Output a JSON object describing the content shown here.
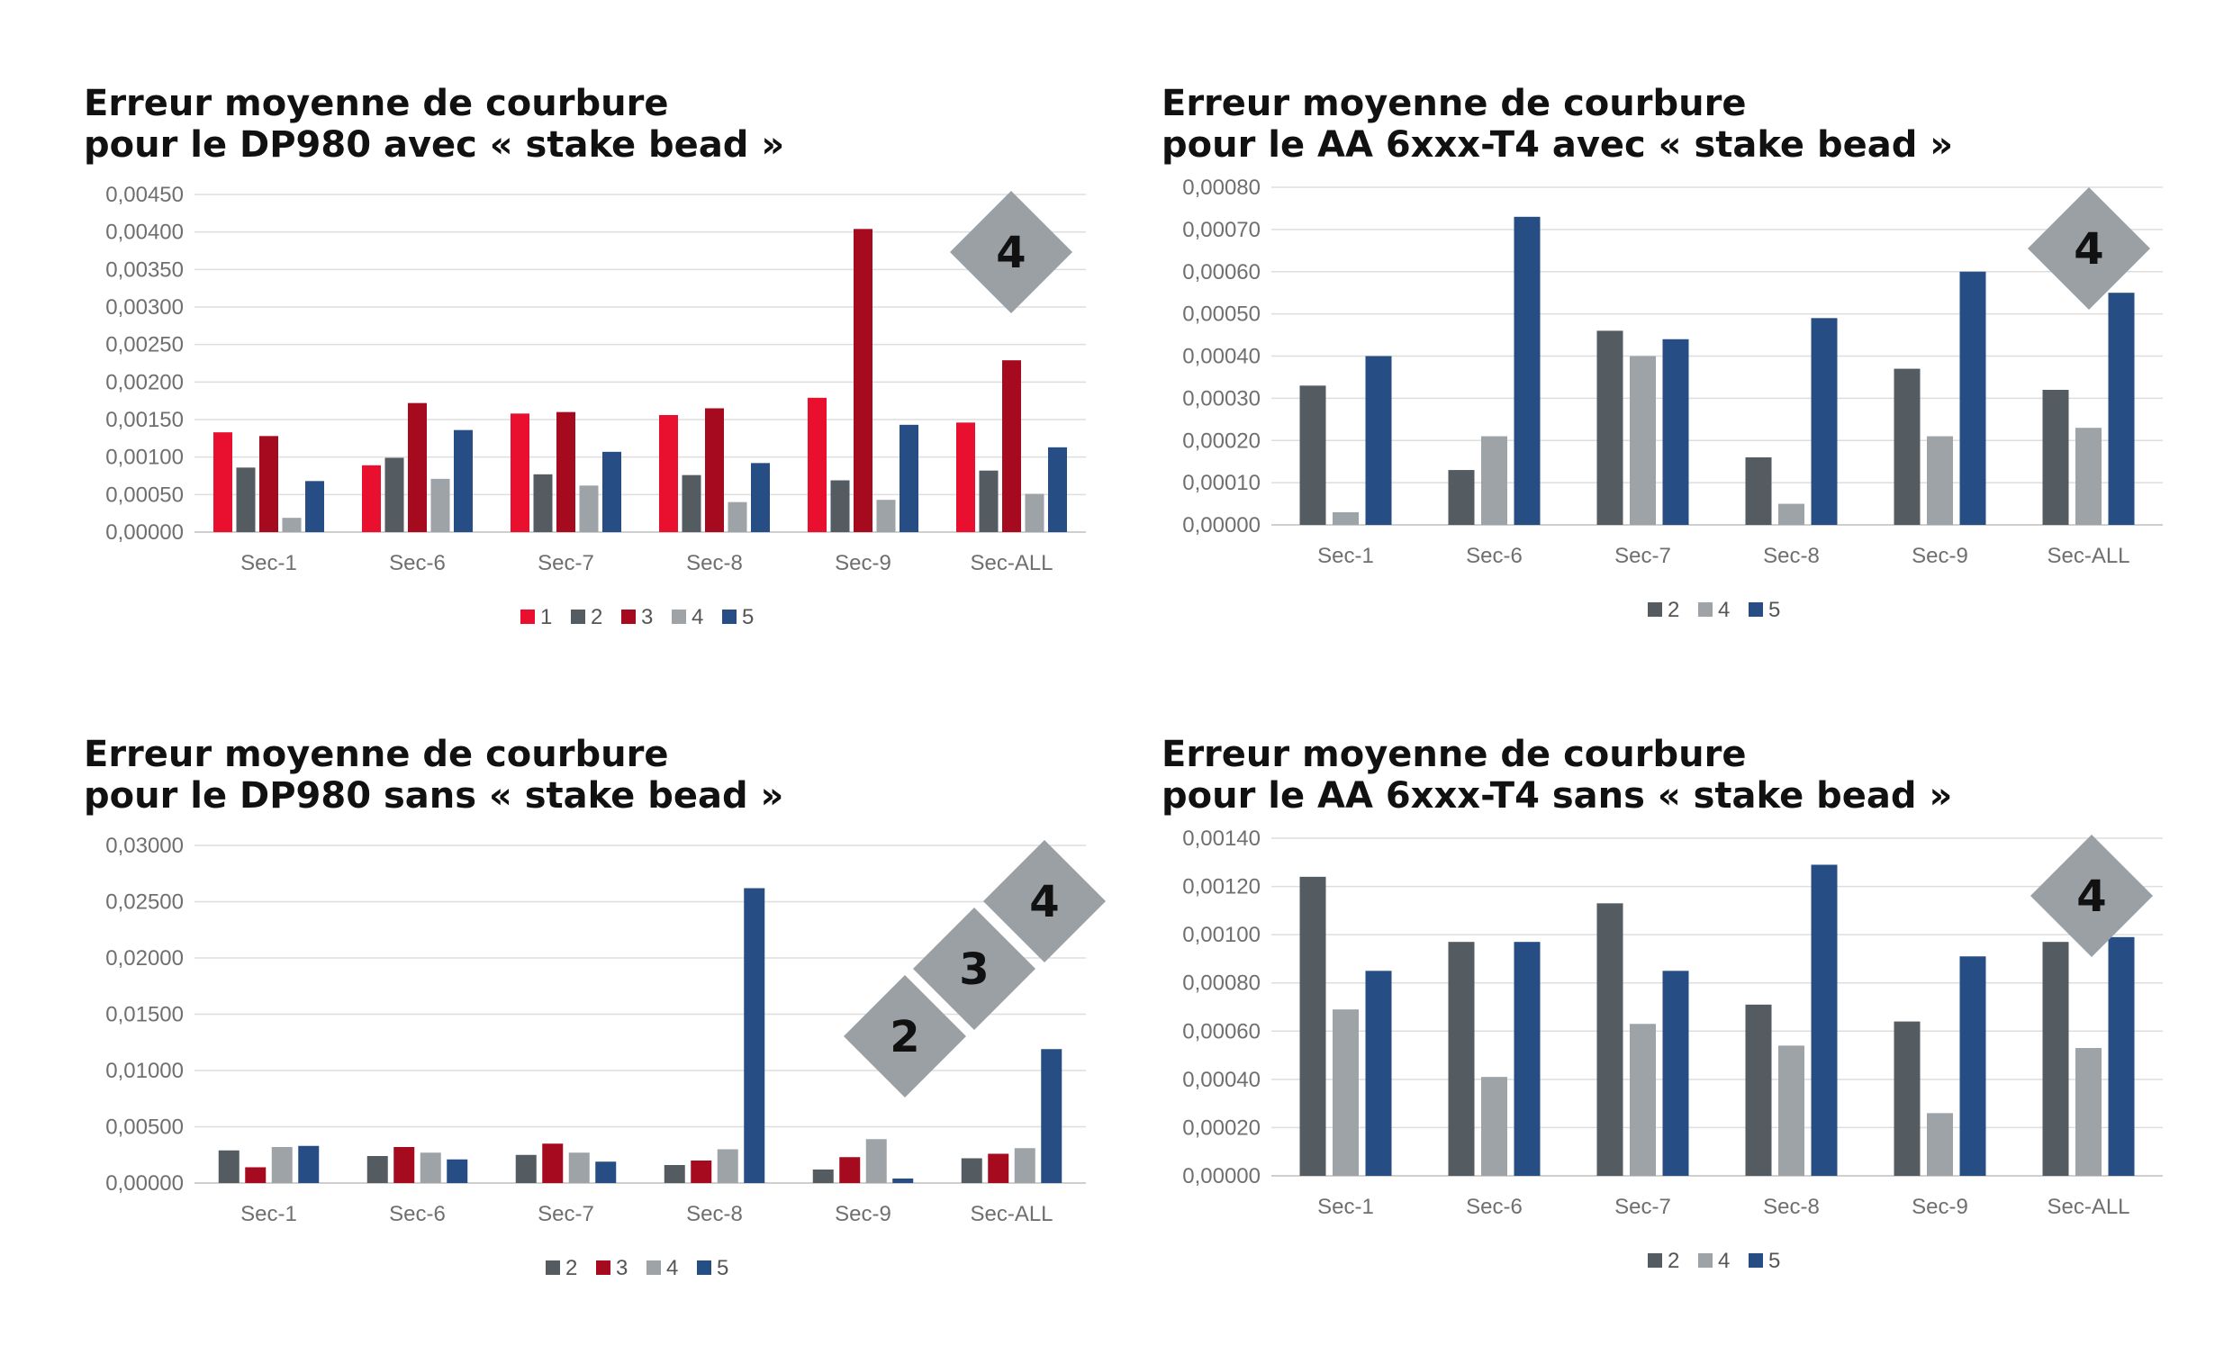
{
  "charts": [
    {
      "title_line1": "Erreur moyenne de courbure",
      "title_line2": "pour le DP980 avec « stake bead »",
      "badges": [
        "4"
      ],
      "chart_data": {
        "type": "bar",
        "categories": [
          "Sec-1",
          "Sec-6",
          "Sec-7",
          "Sec-8",
          "Sec-9",
          "Sec-ALL"
        ],
        "ylim": [
          0,
          0.0045
        ],
        "yticks": [
          "0,00000",
          "0,00050",
          "0,00100",
          "0,00150",
          "0,00200",
          "0,00250",
          "0,00300",
          "0,00350",
          "0,00400",
          "0,00450"
        ],
        "grid": true,
        "legend_position": "bottom",
        "series": [
          {
            "name": "1",
            "color": "#E8102E",
            "values": [
              0.00133,
              0.00089,
              0.00158,
              0.00156,
              0.00179,
              0.00146
            ]
          },
          {
            "name": "2",
            "color": "#545B61",
            "values": [
              0.00086,
              0.00099,
              0.00077,
              0.00076,
              0.00069,
              0.00082
            ]
          },
          {
            "name": "3",
            "color": "#A50A1E",
            "values": [
              0.00128,
              0.00172,
              0.0016,
              0.00165,
              0.00404,
              0.00229
            ]
          },
          {
            "name": "4",
            "color": "#9EA3A7",
            "values": [
              0.00019,
              0.00071,
              0.00062,
              0.0004,
              0.00043,
              0.00051
            ]
          },
          {
            "name": "5",
            "color": "#264D84",
            "values": [
              0.00068,
              0.00136,
              0.00107,
              0.00092,
              0.00143,
              0.00113
            ]
          }
        ]
      }
    },
    {
      "title_line1": "Erreur moyenne de courbure",
      "title_line2": "pour le AA 6xxx-T4 avec « stake bead »",
      "badges": [
        "4"
      ],
      "chart_data": {
        "type": "bar",
        "categories": [
          "Sec-1",
          "Sec-6",
          "Sec-7",
          "Sec-8",
          "Sec-9",
          "Sec-ALL"
        ],
        "ylim": [
          0,
          0.0008
        ],
        "yticks": [
          "0,00000",
          "0,00010",
          "0,00020",
          "0,00030",
          "0,00040",
          "0,00050",
          "0,00060",
          "0,00070",
          "0,00080"
        ],
        "grid": true,
        "legend_position": "bottom",
        "series": [
          {
            "name": "2",
            "color": "#545B61",
            "values": [
              0.00033,
              0.00013,
              0.00046,
              0.00016,
              0.00037,
              0.00032
            ]
          },
          {
            "name": "4",
            "color": "#9EA3A7",
            "values": [
              3e-05,
              0.00021,
              0.0004,
              5e-05,
              0.00021,
              0.00023
            ]
          },
          {
            "name": "5",
            "color": "#264D84",
            "values": [
              0.0004,
              0.00073,
              0.00044,
              0.00049,
              0.0006,
              0.00055
            ]
          }
        ]
      }
    },
    {
      "title_line1": "Erreur moyenne de courbure",
      "title_line2": "pour le DP980 sans « stake bead »",
      "badges": [
        "2",
        "3",
        "4"
      ],
      "chart_data": {
        "type": "bar",
        "categories": [
          "Sec-1",
          "Sec-6",
          "Sec-7",
          "Sec-8",
          "Sec-9",
          "Sec-ALL"
        ],
        "ylim": [
          0,
          0.03
        ],
        "yticks": [
          "0,00000",
          "0,00500",
          "0,01000",
          "0,01500",
          "0,02000",
          "0,02500",
          "0,03000"
        ],
        "grid": true,
        "legend_position": "bottom",
        "series": [
          {
            "name": "2",
            "color": "#545B61",
            "values": [
              0.0029,
              0.0024,
              0.0025,
              0.0016,
              0.0012,
              0.0022
            ]
          },
          {
            "name": "3",
            "color": "#A50A1E",
            "values": [
              0.0014,
              0.0032,
              0.0035,
              0.002,
              0.0023,
              0.0026
            ]
          },
          {
            "name": "4",
            "color": "#9EA3A7",
            "values": [
              0.0032,
              0.0027,
              0.0027,
              0.003,
              0.0039,
              0.0031
            ]
          },
          {
            "name": "5",
            "color": "#264D84",
            "values": [
              0.0033,
              0.0021,
              0.0019,
              0.0262,
              0.0004,
              0.0119
            ]
          }
        ]
      }
    },
    {
      "title_line1": "Erreur moyenne de courbure",
      "title_line2": "pour le AA 6xxx-T4 sans « stake bead »",
      "badges": [
        "4"
      ],
      "chart_data": {
        "type": "bar",
        "categories": [
          "Sec-1",
          "Sec-6",
          "Sec-7",
          "Sec-8",
          "Sec-9",
          "Sec-ALL"
        ],
        "ylim": [
          0,
          0.0014
        ],
        "yticks": [
          "0,00000",
          "0,00020",
          "0,00040",
          "0,00060",
          "0,00080",
          "0,00100",
          "0,00120",
          "0,00140"
        ],
        "grid": true,
        "legend_position": "bottom",
        "series": [
          {
            "name": "2",
            "color": "#545B61",
            "values": [
              0.00124,
              0.00097,
              0.00113,
              0.00071,
              0.00064,
              0.00097
            ]
          },
          {
            "name": "4",
            "color": "#9EA3A7",
            "values": [
              0.00069,
              0.00041,
              0.00063,
              0.00054,
              0.00026,
              0.00053
            ]
          },
          {
            "name": "5",
            "color": "#264D84",
            "values": [
              0.00085,
              0.00097,
              0.00085,
              0.00129,
              0.00091,
              0.00099
            ]
          }
        ]
      }
    }
  ]
}
